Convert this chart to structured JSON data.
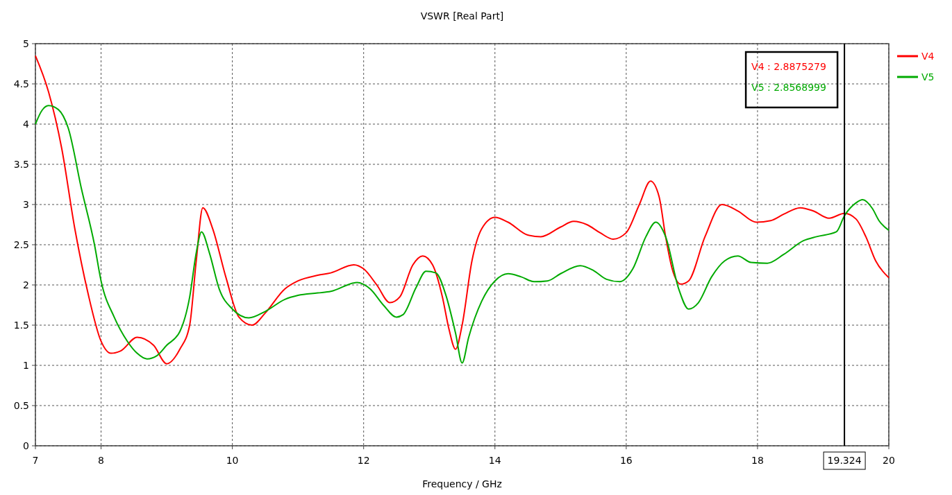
{
  "chart_data": {
    "type": "line",
    "title": "VSWR [Real Part]",
    "xlabel": "Frequency / GHz",
    "xlim": [
      7,
      20
    ],
    "xticks": [
      7,
      8,
      10,
      12,
      14,
      16,
      18,
      20
    ],
    "ylim": [
      0,
      5
    ],
    "yticks": [
      0,
      0.5,
      1,
      1.5,
      2,
      2.5,
      3,
      3.5,
      4,
      4.5,
      5
    ],
    "grid": true,
    "legend": "top right",
    "line_style": "solid",
    "marker": "none",
    "ref_lines": [
      {
        "axis": "x",
        "value": 19.324,
        "label": "19.324",
        "color": "#000000"
      }
    ],
    "annotations": [
      "V4 : 2.8875279",
      "V5 : 2.8568999"
    ],
    "series": [
      {
        "name": "V4",
        "color": "#ff0000",
        "x": [
          7,
          7.2,
          7.4,
          7.6,
          7.8,
          8,
          8.15,
          8.3,
          8.55,
          8.8,
          9,
          9.2,
          9.35,
          9.45,
          9.55,
          9.7,
          9.9,
          10.1,
          10.3,
          10.5,
          10.8,
          11,
          11.3,
          11.5,
          11.85,
          12,
          12.2,
          12.4,
          12.55,
          12.75,
          12.9,
          13.05,
          13.2,
          13.3,
          13.4,
          13.5,
          13.65,
          13.8,
          14,
          14.2,
          14.5,
          14.7,
          15,
          15.2,
          15.4,
          15.6,
          15.8,
          16,
          16.2,
          16.37,
          16.5,
          16.6,
          16.7,
          16.83,
          16.95,
          17.2,
          17.46,
          17.7,
          17.98,
          18.2,
          18.4,
          18.65,
          18.85,
          19.09,
          19.324,
          19.5,
          19.65,
          19.8,
          20
        ],
        "values": [
          4.85,
          4.4,
          3.7,
          2.7,
          1.9,
          1.3,
          1.15,
          1.18,
          1.35,
          1.25,
          1.02,
          1.2,
          1.5,
          2.3,
          2.96,
          2.7,
          2.1,
          1.6,
          1.5,
          1.65,
          1.95,
          2.05,
          2.12,
          2.15,
          2.25,
          2.2,
          2,
          1.78,
          1.85,
          2.25,
          2.36,
          2.25,
          1.85,
          1.45,
          1.2,
          1.5,
          2.3,
          2.7,
          2.84,
          2.78,
          2.62,
          2.6,
          2.72,
          2.79,
          2.75,
          2.65,
          2.57,
          2.65,
          3,
          3.29,
          3.1,
          2.6,
          2.2,
          2.01,
          2.05,
          2.6,
          3,
          2.92,
          2.78,
          2.8,
          2.88,
          2.96,
          2.92,
          2.83,
          2.89,
          2.82,
          2.6,
          2.3,
          2.09
        ]
      },
      {
        "name": "V5",
        "color": "#00aa00",
        "x": [
          7,
          7.1,
          7.2,
          7.35,
          7.5,
          7.7,
          7.9,
          8,
          8.2,
          8.4,
          8.55,
          8.7,
          8.85,
          9,
          9.2,
          9.35,
          9.45,
          9.53,
          9.65,
          9.8,
          10,
          10.25,
          10.5,
          10.8,
          11,
          11.3,
          11.5,
          11.9,
          12.1,
          12.3,
          12.5,
          12.6,
          12.8,
          12.95,
          13.1,
          13.25,
          13.4,
          13.5,
          13.6,
          13.8,
          14,
          14.2,
          14.4,
          14.6,
          14.8,
          15,
          15.3,
          15.5,
          15.7,
          15.9,
          16.1,
          16.3,
          16.45,
          16.6,
          16.8,
          16.95,
          17.1,
          17.3,
          17.5,
          17.7,
          17.9,
          18.15,
          18.4,
          18.7,
          18.9,
          19.2,
          19.324,
          19.5,
          19.6,
          19.75,
          19.85,
          20
        ],
        "values": [
          4,
          4.17,
          4.23,
          4.18,
          3.95,
          3.2,
          2.5,
          2.05,
          1.6,
          1.3,
          1.15,
          1.08,
          1.12,
          1.25,
          1.42,
          1.85,
          2.4,
          2.66,
          2.4,
          1.95,
          1.7,
          1.59,
          1.67,
          1.82,
          1.87,
          1.9,
          1.92,
          2.03,
          1.95,
          1.75,
          1.6,
          1.63,
          1.97,
          2.17,
          2.15,
          1.88,
          1.4,
          1.03,
          1.35,
          1.8,
          2.05,
          2.14,
          2.1,
          2.04,
          2.05,
          2.14,
          2.24,
          2.18,
          2.07,
          2.04,
          2.2,
          2.6,
          2.78,
          2.6,
          1.95,
          1.7,
          1.78,
          2.1,
          2.3,
          2.36,
          2.28,
          2.27,
          2.38,
          2.55,
          2.6,
          2.66,
          2.86,
          3.02,
          3.06,
          2.95,
          2.8,
          2.68
        ]
      }
    ]
  }
}
